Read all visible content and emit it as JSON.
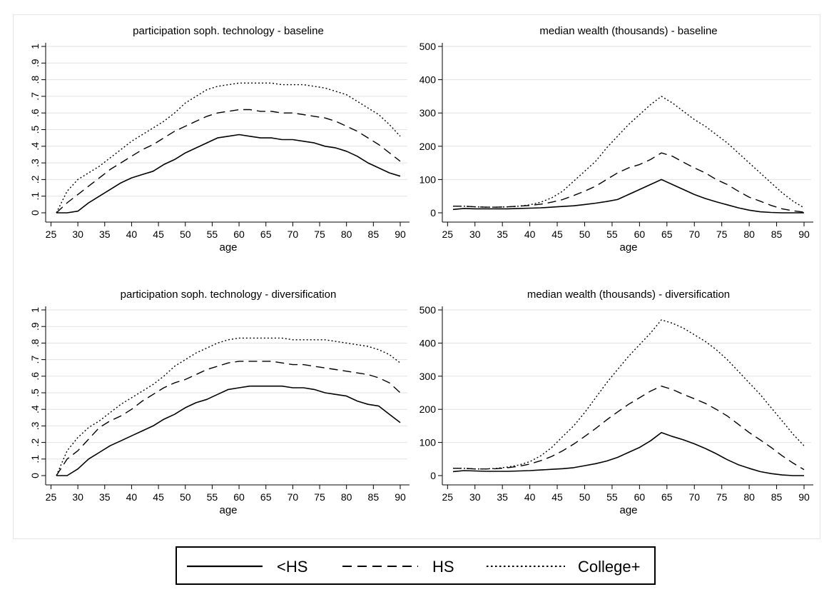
{
  "legend": {
    "items": [
      {
        "label": "<HS",
        "style": "solid"
      },
      {
        "label": "HS",
        "style": "dashed"
      },
      {
        "label": "College+",
        "style": "dotted"
      }
    ]
  },
  "chart_data": [
    {
      "type": "line",
      "title": "participation soph. technology - baseline",
      "xlabel": "age",
      "ylabel": "",
      "xlim": [
        26,
        90
      ],
      "ylim": [
        0,
        1
      ],
      "xticks": [
        25,
        30,
        35,
        40,
        45,
        50,
        55,
        60,
        65,
        70,
        75,
        80,
        85,
        90
      ],
      "yticks": [
        "0",
        ".1",
        ".2",
        ".3",
        ".4",
        ".5",
        ".6",
        ".7",
        ".8",
        ".9",
        "1"
      ],
      "yticks_values": [
        0,
        0.1,
        0.2,
        0.3,
        0.4,
        0.5,
        0.6,
        0.7,
        0.8,
        0.9,
        1
      ],
      "grid": true,
      "x": [
        26,
        28,
        30,
        32,
        34,
        36,
        38,
        40,
        42,
        44,
        46,
        48,
        50,
        52,
        54,
        56,
        58,
        60,
        62,
        64,
        66,
        68,
        70,
        72,
        74,
        76,
        78,
        80,
        82,
        84,
        86,
        88,
        90
      ],
      "series": [
        {
          "name": "<HS",
          "style": "solid",
          "values": [
            0.0,
            0.0,
            0.01,
            0.06,
            0.1,
            0.14,
            0.18,
            0.21,
            0.23,
            0.25,
            0.29,
            0.32,
            0.36,
            0.39,
            0.42,
            0.45,
            0.46,
            0.47,
            0.46,
            0.45,
            0.45,
            0.44,
            0.44,
            0.43,
            0.42,
            0.4,
            0.39,
            0.37,
            0.34,
            0.3,
            0.27,
            0.24,
            0.22
          ]
        },
        {
          "name": "HS",
          "style": "dashed",
          "values": [
            0.0,
            0.06,
            0.11,
            0.16,
            0.21,
            0.26,
            0.3,
            0.34,
            0.38,
            0.41,
            0.45,
            0.49,
            0.52,
            0.55,
            0.58,
            0.6,
            0.61,
            0.62,
            0.62,
            0.61,
            0.61,
            0.6,
            0.6,
            0.59,
            0.58,
            0.57,
            0.55,
            0.52,
            0.49,
            0.45,
            0.41,
            0.36,
            0.31
          ]
        },
        {
          "name": "College+",
          "style": "dotted",
          "values": [
            0.0,
            0.13,
            0.2,
            0.24,
            0.28,
            0.33,
            0.38,
            0.43,
            0.47,
            0.51,
            0.55,
            0.6,
            0.66,
            0.7,
            0.74,
            0.76,
            0.77,
            0.78,
            0.78,
            0.78,
            0.78,
            0.77,
            0.77,
            0.77,
            0.76,
            0.75,
            0.73,
            0.71,
            0.67,
            0.63,
            0.59,
            0.53,
            0.46
          ]
        }
      ]
    },
    {
      "type": "line",
      "title": "median wealth (thousands) - baseline",
      "xlabel": "age",
      "ylabel": "",
      "xlim": [
        26,
        90
      ],
      "ylim": [
        0,
        500
      ],
      "xticks": [
        25,
        30,
        35,
        40,
        45,
        50,
        55,
        60,
        65,
        70,
        75,
        80,
        85,
        90
      ],
      "yticks": [
        "0",
        "100",
        "200",
        "300",
        "400",
        "500"
      ],
      "yticks_values": [
        0,
        100,
        200,
        300,
        400,
        500
      ],
      "grid": true,
      "x": [
        26,
        28,
        30,
        32,
        34,
        36,
        38,
        40,
        42,
        44,
        46,
        48,
        50,
        52,
        54,
        56,
        58,
        60,
        62,
        64,
        66,
        68,
        70,
        72,
        74,
        76,
        78,
        80,
        82,
        84,
        86,
        88,
        90
      ],
      "series": [
        {
          "name": "<HS",
          "style": "solid",
          "values": [
            10,
            13,
            12,
            12,
            12,
            12,
            13,
            14,
            15,
            17,
            19,
            21,
            25,
            29,
            34,
            40,
            55,
            70,
            85,
            100,
            85,
            70,
            55,
            43,
            33,
            24,
            15,
            8,
            3,
            1,
            0,
            0,
            0
          ]
        },
        {
          "name": "HS",
          "style": "dashed",
          "values": [
            20,
            20,
            18,
            17,
            17,
            18,
            20,
            22,
            26,
            32,
            40,
            52,
            65,
            80,
            100,
            120,
            135,
            145,
            160,
            180,
            170,
            152,
            135,
            120,
            100,
            85,
            65,
            47,
            35,
            22,
            12,
            6,
            2
          ]
        },
        {
          "name": "College+",
          "style": "dotted",
          "values": [
            20,
            20,
            18,
            17,
            17,
            18,
            20,
            24,
            32,
            45,
            65,
            95,
            125,
            155,
            195,
            230,
            265,
            295,
            325,
            350,
            330,
            305,
            280,
            260,
            235,
            210,
            180,
            150,
            120,
            90,
            60,
            35,
            15
          ]
        }
      ]
    },
    {
      "type": "line",
      "title": "participation soph. technology - diversification",
      "xlabel": "age",
      "ylabel": "",
      "xlim": [
        26,
        90
      ],
      "ylim": [
        0,
        1
      ],
      "xticks": [
        25,
        30,
        35,
        40,
        45,
        50,
        55,
        60,
        65,
        70,
        75,
        80,
        85,
        90
      ],
      "yticks": [
        "0",
        ".1",
        ".2",
        ".3",
        ".4",
        ".5",
        ".6",
        ".7",
        ".8",
        ".9",
        "1"
      ],
      "yticks_values": [
        0,
        0.1,
        0.2,
        0.3,
        0.4,
        0.5,
        0.6,
        0.7,
        0.8,
        0.9,
        1
      ],
      "grid": true,
      "x": [
        26,
        28,
        30,
        32,
        34,
        36,
        38,
        40,
        42,
        44,
        46,
        48,
        50,
        52,
        54,
        56,
        58,
        60,
        62,
        64,
        66,
        68,
        70,
        72,
        74,
        76,
        78,
        80,
        82,
        84,
        86,
        88,
        90
      ],
      "series": [
        {
          "name": "<HS",
          "style": "solid",
          "values": [
            0.0,
            0.0,
            0.04,
            0.1,
            0.14,
            0.18,
            0.21,
            0.24,
            0.27,
            0.3,
            0.34,
            0.37,
            0.41,
            0.44,
            0.46,
            0.49,
            0.52,
            0.53,
            0.54,
            0.54,
            0.54,
            0.54,
            0.53,
            0.53,
            0.52,
            0.5,
            0.49,
            0.48,
            0.45,
            0.43,
            0.42,
            0.37,
            0.32
          ]
        },
        {
          "name": "HS",
          "style": "dashed",
          "values": [
            0.0,
            0.1,
            0.15,
            0.22,
            0.29,
            0.33,
            0.36,
            0.4,
            0.45,
            0.49,
            0.53,
            0.56,
            0.58,
            0.61,
            0.64,
            0.66,
            0.68,
            0.69,
            0.69,
            0.69,
            0.69,
            0.68,
            0.67,
            0.67,
            0.66,
            0.65,
            0.64,
            0.63,
            0.62,
            0.61,
            0.59,
            0.56,
            0.5
          ]
        },
        {
          "name": "College+",
          "style": "dotted",
          "values": [
            0.0,
            0.15,
            0.23,
            0.29,
            0.33,
            0.38,
            0.43,
            0.47,
            0.51,
            0.55,
            0.6,
            0.66,
            0.7,
            0.74,
            0.77,
            0.8,
            0.82,
            0.83,
            0.83,
            0.83,
            0.83,
            0.83,
            0.82,
            0.82,
            0.82,
            0.82,
            0.81,
            0.8,
            0.79,
            0.78,
            0.76,
            0.73,
            0.68
          ]
        }
      ]
    },
    {
      "type": "line",
      "title": "median wealth (thousands) - diversification",
      "xlabel": "age",
      "ylabel": "",
      "xlim": [
        26,
        90
      ],
      "ylim": [
        0,
        500
      ],
      "xticks": [
        25,
        30,
        35,
        40,
        45,
        50,
        55,
        60,
        65,
        70,
        75,
        80,
        85,
        90
      ],
      "yticks": [
        "0",
        "100",
        "200",
        "300",
        "400",
        "500"
      ],
      "yticks_values": [
        0,
        100,
        200,
        300,
        400,
        500
      ],
      "grid": true,
      "x": [
        26,
        28,
        30,
        32,
        34,
        36,
        38,
        40,
        42,
        44,
        46,
        48,
        50,
        52,
        54,
        56,
        58,
        60,
        62,
        64,
        66,
        68,
        70,
        72,
        74,
        76,
        78,
        80,
        82,
        84,
        86,
        88,
        90
      ],
      "series": [
        {
          "name": "<HS",
          "style": "solid",
          "values": [
            12,
            15,
            14,
            13,
            13,
            13,
            14,
            15,
            17,
            19,
            21,
            24,
            30,
            36,
            44,
            55,
            70,
            85,
            105,
            130,
            118,
            108,
            96,
            82,
            66,
            48,
            33,
            22,
            12,
            6,
            2,
            0,
            0
          ]
        },
        {
          "name": "HS",
          "style": "dashed",
          "values": [
            22,
            22,
            20,
            20,
            21,
            24,
            28,
            35,
            45,
            58,
            75,
            95,
            118,
            142,
            168,
            192,
            215,
            235,
            255,
            270,
            260,
            245,
            232,
            218,
            200,
            180,
            155,
            130,
            108,
            85,
            60,
            38,
            18
          ]
        },
        {
          "name": "College+",
          "style": "dotted",
          "values": [
            22,
            22,
            20,
            20,
            22,
            26,
            32,
            42,
            60,
            85,
            118,
            150,
            190,
            235,
            280,
            320,
            360,
            395,
            430,
            470,
            460,
            445,
            425,
            405,
            380,
            350,
            315,
            280,
            245,
            205,
            165,
            125,
            90
          ]
        }
      ]
    }
  ]
}
